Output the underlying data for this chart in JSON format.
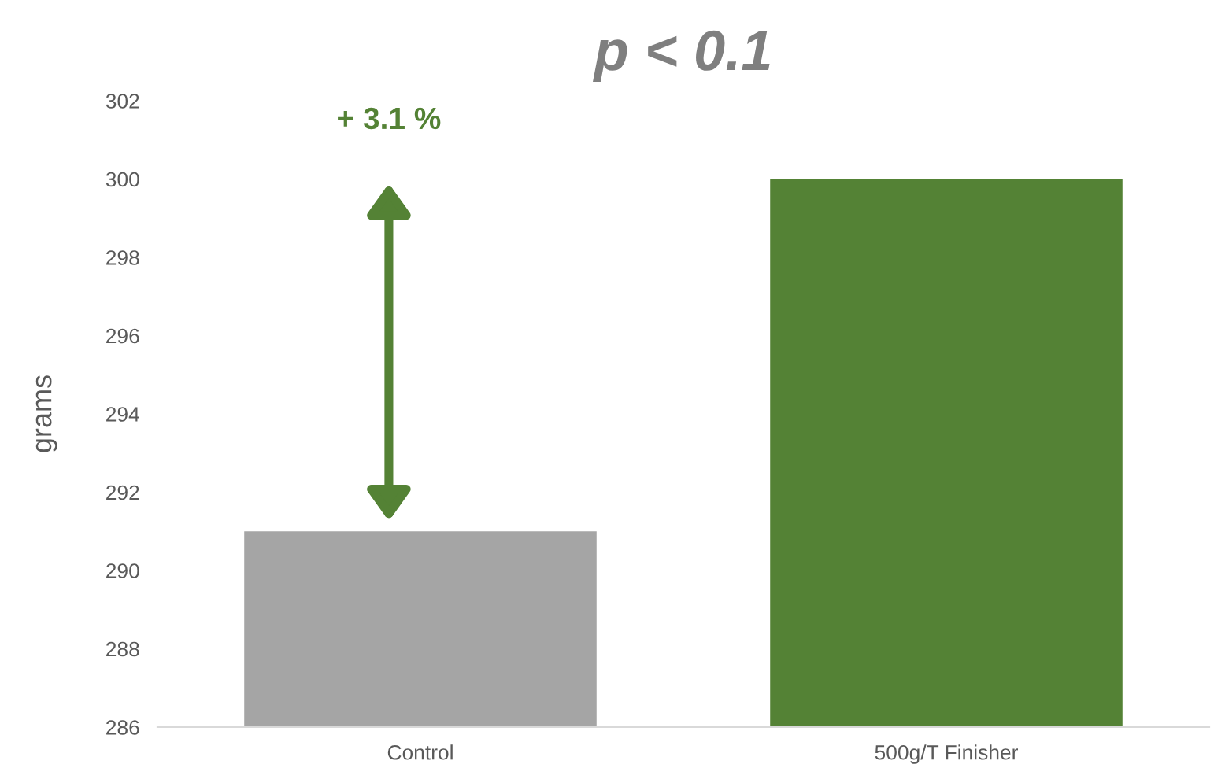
{
  "chart_data": {
    "type": "bar",
    "title": "p < 0.1",
    "ylabel": "grams",
    "categories": [
      "Control",
      "500g/T Finisher"
    ],
    "values": [
      291.0,
      300.0
    ],
    "colors": [
      "#a5a5a5",
      "#548235"
    ],
    "ylim": [
      286,
      302
    ],
    "yticks": [
      286,
      288,
      290,
      292,
      294,
      296,
      298,
      300,
      302
    ],
    "grid": false,
    "legend": false,
    "annotations": [
      "+ 3.1 %"
    ]
  }
}
